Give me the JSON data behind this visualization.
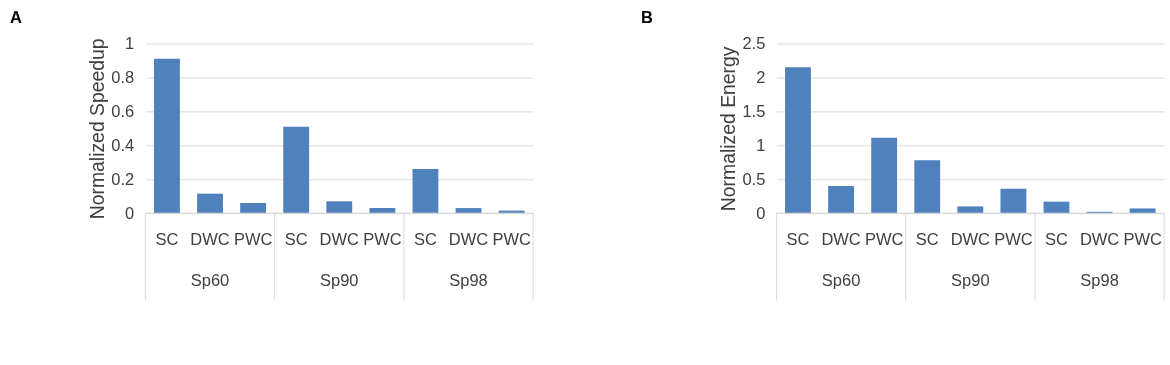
{
  "chart_data": [
    {
      "type": "bar",
      "title": "A",
      "ylabel": "Normalized Speedup",
      "categories": [
        "SC",
        "DWC",
        "PWC",
        "SC",
        "DWC",
        "PWC",
        "SC",
        "DWC",
        "PWC"
      ],
      "annotations": [
        "Sp60",
        "Sp90",
        "Sp98"
      ],
      "values": [
        0.91,
        0.115,
        0.06,
        0.51,
        0.07,
        0.03,
        0.26,
        0.03,
        0.015
      ],
      "color": "#4f81bd",
      "ylim": [
        0,
        1
      ],
      "yticks": [
        0,
        0.2,
        0.4,
        0.6,
        0.8,
        1
      ],
      "grid": "y"
    },
    {
      "type": "bar",
      "title": "B",
      "ylabel": "Normalized Energy",
      "categories": [
        "SC",
        "DWC",
        "PWC",
        "SC",
        "DWC",
        "PWC",
        "SC",
        "DWC",
        "PWC"
      ],
      "annotations": [
        "Sp60",
        "Sp90",
        "Sp98"
      ],
      "values": [
        2.15,
        0.4,
        1.11,
        0.78,
        0.1,
        0.36,
        0.17,
        0.02,
        0.07
      ],
      "color": "#4f81bd",
      "ylim": [
        0,
        2.5
      ],
      "yticks": [
        0,
        0.5,
        1,
        1.5,
        2,
        2.5
      ],
      "grid": "y"
    }
  ]
}
